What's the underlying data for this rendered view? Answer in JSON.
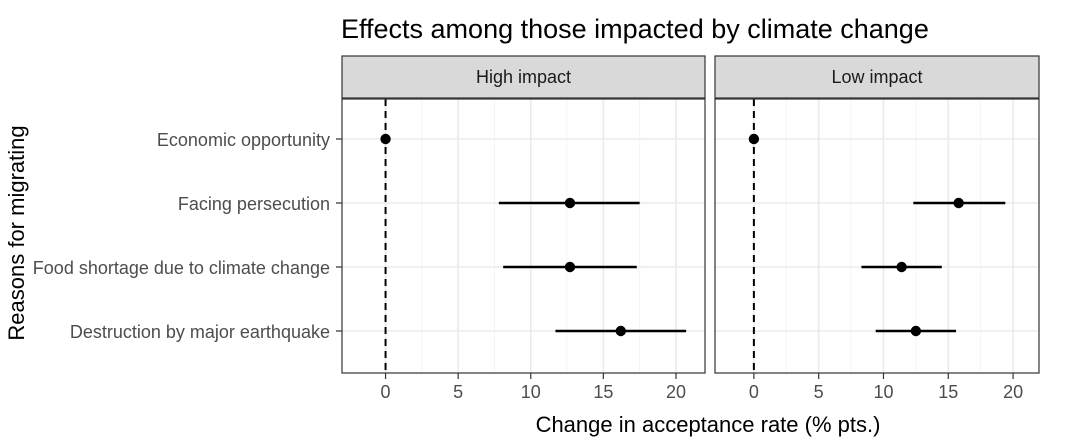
{
  "chart_data": {
    "type": "scatter",
    "title": "Effects among those impacted by climate change",
    "xlabel": "Change in acceptance rate (% pts.)",
    "ylabel": "Reasons for migrating",
    "categories": [
      "Economic opportunity",
      "Facing persecution",
      "Food shortage due to climate change",
      "Destruction by major earthquake"
    ],
    "xlim": [
      -3,
      22
    ],
    "xticks": [
      0,
      5,
      10,
      15,
      20
    ],
    "reference_line_x": 0,
    "grid": true,
    "panels": [
      {
        "name": "High impact",
        "points": [
          {
            "category": "Economic opportunity",
            "estimate": 0,
            "lower": 0,
            "upper": 0
          },
          {
            "category": "Facing persecution",
            "estimate": 12.7,
            "lower": 7.8,
            "upper": 17.5
          },
          {
            "category": "Food shortage due to climate change",
            "estimate": 12.7,
            "lower": 8.1,
            "upper": 17.3
          },
          {
            "category": "Destruction by major earthquake",
            "estimate": 16.2,
            "lower": 11.7,
            "upper": 20.7
          }
        ]
      },
      {
        "name": "Low impact",
        "points": [
          {
            "category": "Economic opportunity",
            "estimate": 0,
            "lower": 0,
            "upper": 0
          },
          {
            "category": "Facing persecution",
            "estimate": 15.8,
            "lower": 12.3,
            "upper": 19.4
          },
          {
            "category": "Food shortage due to climate change",
            "estimate": 11.4,
            "lower": 8.3,
            "upper": 14.5
          },
          {
            "category": "Destruction by major earthquake",
            "estimate": 12.5,
            "lower": 9.4,
            "upper": 15.6
          }
        ]
      }
    ]
  },
  "colors": {
    "strip_fill": "#d9d9d9",
    "panel_border": "#333333",
    "grid_major": "#ebebeb",
    "grid_minor": "#f5f5f5",
    "point": "#000000",
    "text_dark": "#000000",
    "text_axis": "#4d4d4d"
  }
}
